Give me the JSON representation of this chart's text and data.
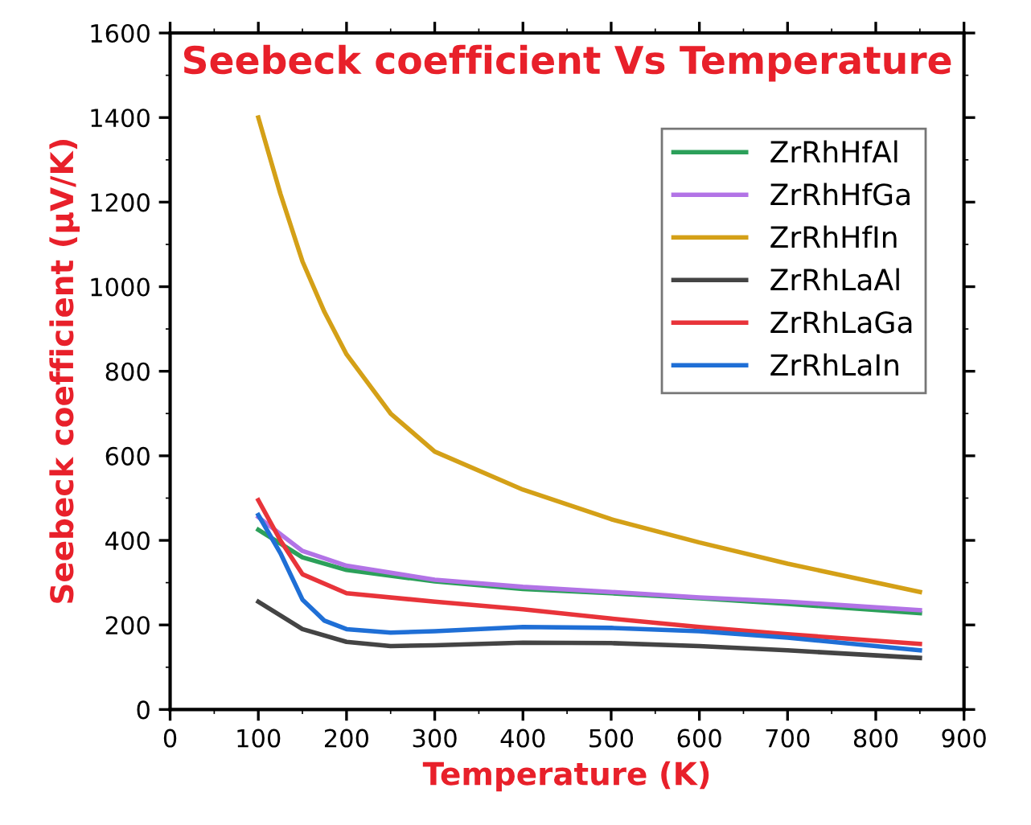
{
  "chart_data": {
    "type": "line",
    "title": "Seebeck coefficient Vs Temperature",
    "xlabel": "Temperature (K)",
    "ylabel": "Seebeck coefficient (μV/K)",
    "xlim": [
      0,
      900
    ],
    "ylim": [
      0,
      1600
    ],
    "xticks": [
      0,
      100,
      200,
      300,
      400,
      500,
      600,
      700,
      800,
      900
    ],
    "yticks": [
      0,
      200,
      400,
      600,
      800,
      1000,
      1200,
      1400,
      1600
    ],
    "grid": false,
    "legend": "top right",
    "marker": "none",
    "line_style": "solid",
    "series": [
      {
        "name": "ZrRhHfAl",
        "color": "#2ca05a",
        "x": [
          100,
          150,
          200,
          300,
          400,
          500,
          600,
          700,
          850
        ],
        "values": [
          425,
          360,
          330,
          303,
          285,
          275,
          263,
          250,
          228
        ]
      },
      {
        "name": "ZrRhHfGa",
        "color": "#b273e6",
        "x": [
          100,
          150,
          200,
          300,
          400,
          500,
          600,
          700,
          850
        ],
        "values": [
          455,
          375,
          340,
          307,
          290,
          278,
          265,
          255,
          235
        ]
      },
      {
        "name": "ZrRhHfIn",
        "color": "#d4a017",
        "x": [
          100,
          125,
          150,
          175,
          200,
          250,
          300,
          400,
          500,
          600,
          700,
          850
        ],
        "values": [
          1400,
          1220,
          1060,
          940,
          840,
          700,
          610,
          520,
          450,
          395,
          345,
          278
        ]
      },
      {
        "name": "ZrRhLaAl",
        "color": "#444444",
        "x": [
          100,
          150,
          200,
          250,
          300,
          400,
          500,
          600,
          700,
          850
        ],
        "values": [
          255,
          190,
          160,
          150,
          152,
          158,
          157,
          150,
          140,
          122
        ]
      },
      {
        "name": "ZrRhLaGa",
        "color": "#e8343a",
        "x": [
          100,
          125,
          150,
          200,
          300,
          400,
          500,
          600,
          700,
          850
        ],
        "values": [
          495,
          400,
          320,
          275,
          255,
          237,
          215,
          195,
          178,
          155
        ]
      },
      {
        "name": "ZrRhLaIn",
        "color": "#1f6fd6",
        "x": [
          100,
          125,
          150,
          175,
          200,
          250,
          300,
          400,
          500,
          600,
          700,
          850
        ],
        "values": [
          460,
          370,
          260,
          210,
          190,
          182,
          185,
          195,
          193,
          185,
          170,
          140
        ]
      }
    ]
  }
}
